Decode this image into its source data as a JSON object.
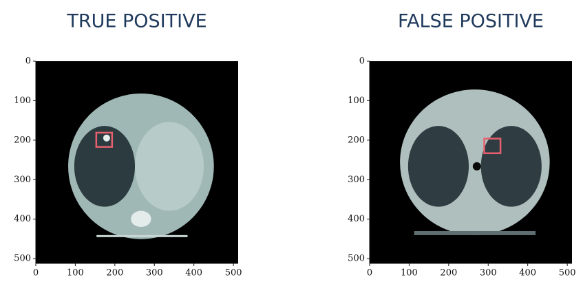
{
  "chart_data": [
    {
      "type": "image",
      "title": "TRUE POSITIVE",
      "xlim": [
        0,
        512
      ],
      "ylim": [
        512,
        0
      ],
      "xticks": [
        0,
        100,
        200,
        300,
        400,
        500
      ],
      "yticks": [
        0,
        100,
        200,
        300,
        400,
        500
      ],
      "box": {
        "x": [
          153,
          193
        ],
        "y": [
          181,
          217
        ],
        "color": "#e8606e"
      }
    },
    {
      "type": "image",
      "title": "FALSE POSITIVE",
      "xlim": [
        0,
        512
      ],
      "ylim": [
        512,
        0
      ],
      "xticks": [
        0,
        100,
        200,
        300,
        400,
        500
      ],
      "yticks": [
        0,
        100,
        200,
        300,
        400,
        500
      ],
      "box": {
        "x": [
          290,
          331
        ],
        "y": [
          196,
          233
        ],
        "color": "#e8606e"
      }
    }
  ]
}
